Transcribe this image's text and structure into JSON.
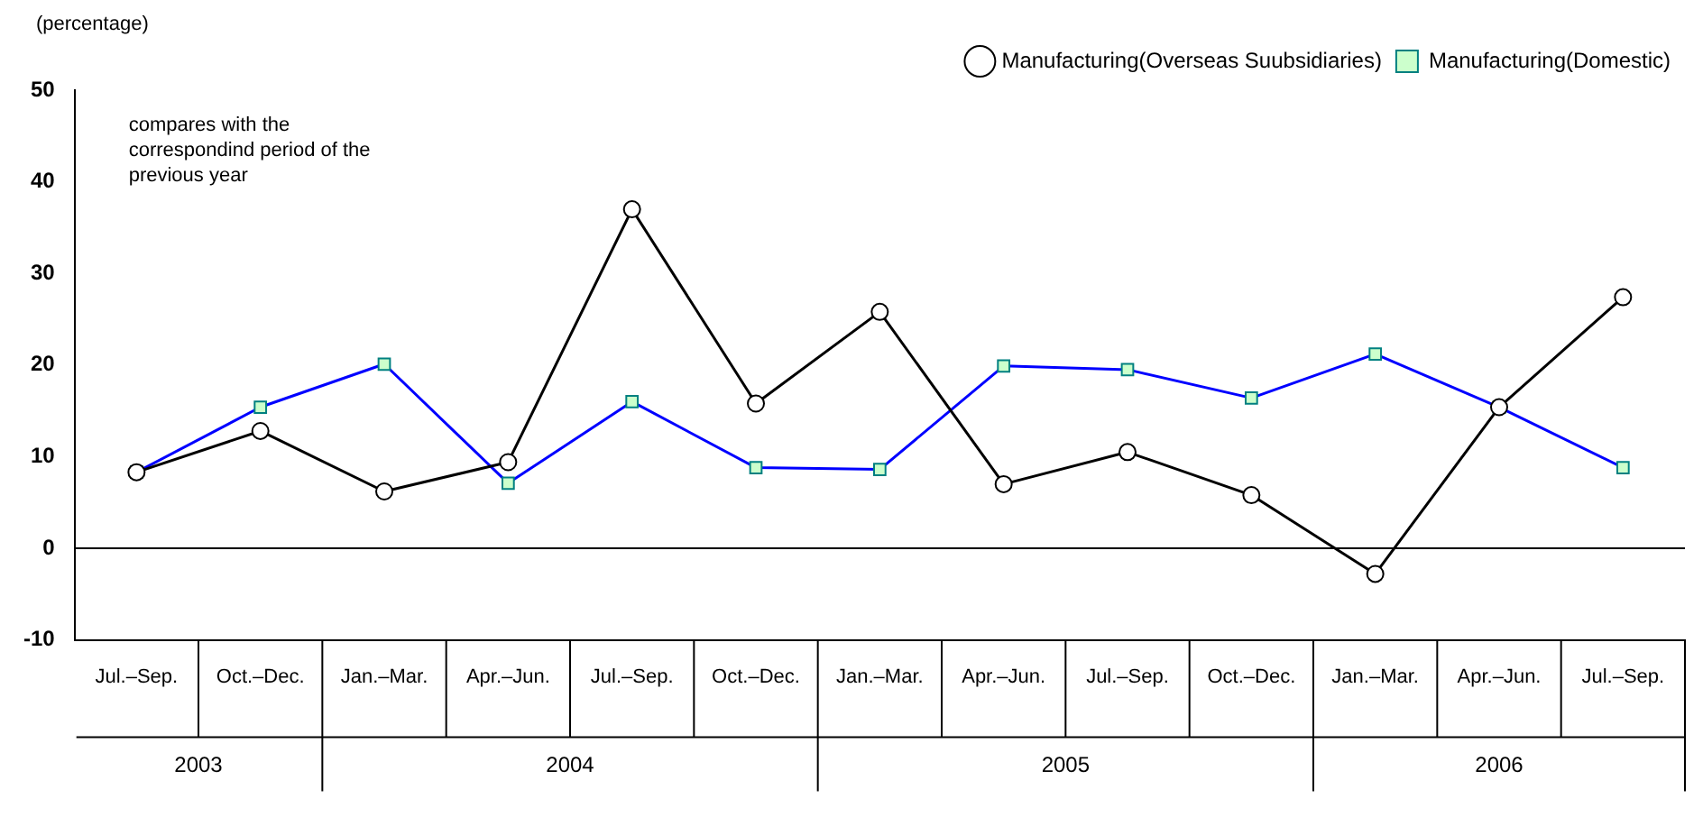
{
  "chart_data": {
    "type": "line",
    "ylabel": "(percentage)",
    "categories": [
      "Jul.–Sep.",
      "Oct.–Dec.",
      "Jan.–Mar.",
      "Apr.–Jun.",
      "Jul.–Sep.",
      "Oct.–Dec.",
      "Jan.–Mar.",
      "Apr.–Jun.",
      "Jul.–Sep.",
      "Oct.–Dec.",
      "Jan.–Mar.",
      "Apr.–Jun.",
      "Jul.–Sep."
    ],
    "series": [
      {
        "name": "Manufacturing(Overseas Suubsidiaries)",
        "color": "#000000",
        "marker": "circle",
        "values": [
          8.3,
          12.8,
          6.2,
          9.4,
          37,
          15.8,
          25.8,
          7,
          10.5,
          5.8,
          -2.8,
          15.4,
          27.4
        ]
      },
      {
        "name": "Manufacturing(Domestic)",
        "color": "#0000ff",
        "marker": "square",
        "values": [
          8.3,
          15.4,
          20.1,
          7.1,
          16,
          8.8,
          8.6,
          19.9,
          19.5,
          16.4,
          21.2,
          15.4,
          8.8
        ]
      }
    ],
    "ylim": [
      -10,
      50
    ],
    "yticks": [
      -10,
      0,
      10,
      20,
      30,
      40,
      50
    ],
    "grid": false,
    "legend": "top right",
    "ref_lines": [
      {
        "axis": "y",
        "value": 0,
        "color": "#000000"
      }
    ],
    "annotations": [
      "compares with the correspondind period of the previous year",
      "2003",
      "2004",
      "2005",
      "2006"
    ]
  }
}
